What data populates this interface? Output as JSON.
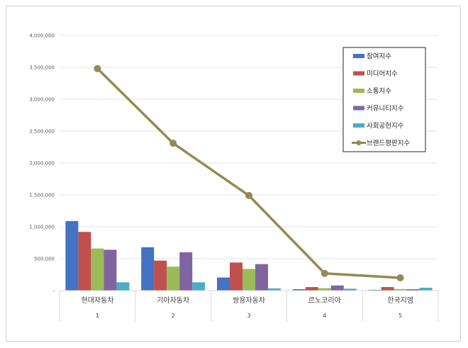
{
  "chart_data": {
    "type": "bar",
    "categories": [
      "현대자동차",
      "기아자동차",
      "쌍용자동차",
      "르노코리아",
      "한국지엠"
    ],
    "category_index": [
      "1",
      "2",
      "3",
      "4",
      "5"
    ],
    "ylim": [
      0,
      4000000
    ],
    "yticks": [
      {
        "value": 0,
        "label": "-"
      },
      {
        "value": 500000,
        "label": "500,000"
      },
      {
        "value": 1000000,
        "label": "1,000,000"
      },
      {
        "value": 1500000,
        "label": "1,500,000"
      },
      {
        "value": 2000000,
        "label": "2,000,000"
      },
      {
        "value": 2500000,
        "label": "2,500,000"
      },
      {
        "value": 3000000,
        "label": "3,000,000"
      },
      {
        "value": 3500000,
        "label": "3,500,000"
      },
      {
        "value": 4000000,
        "label": "4,000,000"
      }
    ],
    "grid": true,
    "legend_position": "top-right",
    "series": [
      {
        "name": "참여지수",
        "type": "bar",
        "color": "#4472c4",
        "values": [
          1090000,
          680000,
          205000,
          22000,
          12000
        ]
      },
      {
        "name": "미디어지수",
        "type": "bar",
        "color": "#c0504d",
        "values": [
          920000,
          470000,
          440000,
          55000,
          55000
        ]
      },
      {
        "name": "소통지수",
        "type": "bar",
        "color": "#9bbb59",
        "values": [
          660000,
          375000,
          340000,
          38000,
          25000
        ]
      },
      {
        "name": "커뮤니티지수",
        "type": "bar",
        "color": "#8064a2",
        "values": [
          640000,
          600000,
          415000,
          80000,
          22000
        ]
      },
      {
        "name": "사회공헌지수",
        "type": "bar",
        "color": "#4bacc6",
        "values": [
          130000,
          130000,
          35000,
          30000,
          45000
        ]
      },
      {
        "name": "브랜드평판지수",
        "type": "line",
        "color": "#948a54",
        "values": [
          3480000,
          2310000,
          1490000,
          270000,
          200000
        ]
      }
    ]
  }
}
